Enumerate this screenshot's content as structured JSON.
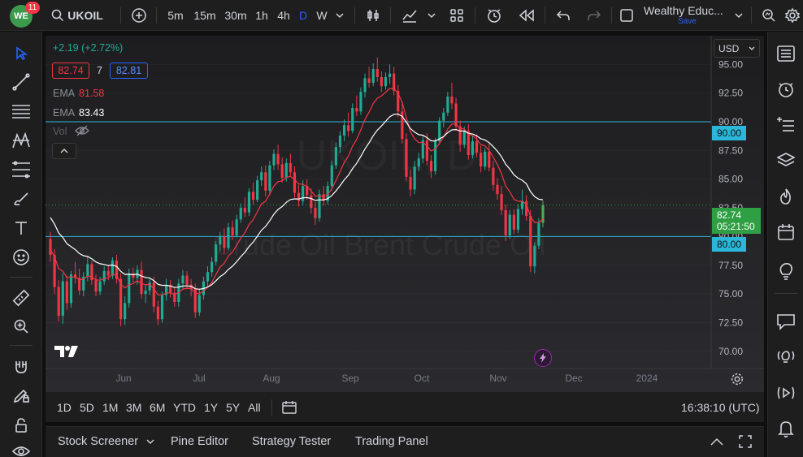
{
  "header": {
    "notification_count": "11",
    "avatar_initials": "WE",
    "symbol": "UKOIL",
    "intervals": [
      "5m",
      "15m",
      "30m",
      "1h",
      "4h",
      "D",
      "W"
    ],
    "active_interval": "D",
    "layout_name": "Wealthy Educ...",
    "save_label": "Save"
  },
  "legend": {
    "change": "+2.19 (+2.72%)",
    "bid": "82.74",
    "spread": "7",
    "ask": "82.81",
    "indicators": [
      {
        "name": "EMA",
        "value": "81.58",
        "color": "#f23645"
      },
      {
        "name": "EMA",
        "value": "83.43",
        "color": "#ffffff"
      }
    ],
    "volume_label": "Vol"
  },
  "watermark": {
    "symbol": "UKOIL, D",
    "name": "Crude Oil Brent Crude Oil"
  },
  "price_axis": {
    "currency": "USD",
    "ticks": [
      "95.00",
      "92.50",
      "90.00",
      "87.50",
      "85.00",
      "82.50",
      "80.00",
      "77.50",
      "75.00",
      "72.50",
      "70.00"
    ],
    "last_price": "82.74",
    "countdown": "05:21:50",
    "hline_upper": "90.00",
    "hline_lower": "80.00"
  },
  "time_axis": {
    "labels": [
      "Jun",
      "Jul",
      "Aug",
      "Sep",
      "Oct",
      "Nov",
      "Dec",
      "2024"
    ]
  },
  "bottom_bar": {
    "ranges": [
      "1D",
      "5D",
      "1M",
      "3M",
      "6M",
      "YTD",
      "1Y",
      "5Y",
      "All"
    ],
    "clock": "16:38:10 (UTC)"
  },
  "panels": [
    "Stock Screener",
    "Pine Editor",
    "Strategy Tester",
    "Trading Panel"
  ],
  "colors": {
    "up": "#22ab94",
    "up_bright": "#4caf50",
    "down": "#f23645",
    "hline": "#2bb7da",
    "accent": "#2962ff",
    "last_price_bg": "#2ea043"
  },
  "chart_data": {
    "type": "candlestick",
    "symbol": "UKOIL",
    "interval": "D",
    "ylim": [
      68.5,
      97.5
    ],
    "yticks": [
      95,
      92.5,
      90,
      87.5,
      85,
      82.5,
      80,
      77.5,
      75,
      72.5,
      70
    ],
    "horizontal_lines": [
      90.0,
      80.0
    ],
    "last_price": 82.74,
    "x_labels": [
      "Jun",
      "Jul",
      "Aug",
      "Sep",
      "Oct",
      "Nov",
      "Dec",
      "2024"
    ],
    "ohlc": [
      [
        79.8,
        80.4,
        77.8,
        78.4
      ],
      [
        78.4,
        78.9,
        75.0,
        75.6
      ],
      [
        75.6,
        76.2,
        72.6,
        73.1
      ],
      [
        73.1,
        76.8,
        72.4,
        76.1
      ],
      [
        76.1,
        76.6,
        73.6,
        74.2
      ],
      [
        74.2,
        77.0,
        73.8,
        76.7
      ],
      [
        76.7,
        77.8,
        75.9,
        76.4
      ],
      [
        76.4,
        77.2,
        74.9,
        75.3
      ],
      [
        75.3,
        76.9,
        74.8,
        76.5
      ],
      [
        76.5,
        78.3,
        76.1,
        77.6
      ],
      [
        77.6,
        77.9,
        75.8,
        76.2
      ],
      [
        76.2,
        76.7,
        74.8,
        75.2
      ],
      [
        75.2,
        76.5,
        74.9,
        76.1
      ],
      [
        76.1,
        77.4,
        75.8,
        77.0
      ],
      [
        77.0,
        77.5,
        76.2,
        76.6
      ],
      [
        76.6,
        78.2,
        76.3,
        77.9
      ],
      [
        77.9,
        78.4,
        75.9,
        76.3
      ],
      [
        76.3,
        76.8,
        72.2,
        72.8
      ],
      [
        72.8,
        74.8,
        72.3,
        74.2
      ],
      [
        74.2,
        77.2,
        73.8,
        76.8
      ],
      [
        76.8,
        77.3,
        76.0,
        76.4
      ],
      [
        76.4,
        77.5,
        75.8,
        77.1
      ],
      [
        77.1,
        77.8,
        74.6,
        75.0
      ],
      [
        75.0,
        75.8,
        74.2,
        75.3
      ],
      [
        75.3,
        76.4,
        74.9,
        76.0
      ],
      [
        76.0,
        76.5,
        73.4,
        73.9
      ],
      [
        73.9,
        74.4,
        72.3,
        72.8
      ],
      [
        72.8,
        75.2,
        72.5,
        74.9
      ],
      [
        74.9,
        76.3,
        74.4,
        75.8
      ],
      [
        75.8,
        76.2,
        74.7,
        75.1
      ],
      [
        75.1,
        75.6,
        73.9,
        74.3
      ],
      [
        74.3,
        76.3,
        73.9,
        75.9
      ],
      [
        75.9,
        77.1,
        75.4,
        76.6
      ],
      [
        76.6,
        77.0,
        75.4,
        75.8
      ],
      [
        75.8,
        76.3,
        74.8,
        75.4
      ],
      [
        75.4,
        75.9,
        72.9,
        73.4
      ],
      [
        73.4,
        75.4,
        73.1,
        74.9
      ],
      [
        74.9,
        76.5,
        74.5,
        76.1
      ],
      [
        76.1,
        77.4,
        75.7,
        76.9
      ],
      [
        76.9,
        78.2,
        76.5,
        77.8
      ],
      [
        77.8,
        79.6,
        77.5,
        79.3
      ],
      [
        79.3,
        80.4,
        78.7,
        80.0
      ],
      [
        80.0,
        80.7,
        78.5,
        79.0
      ],
      [
        79.0,
        81.2,
        78.8,
        80.8
      ],
      [
        80.8,
        81.4,
        79.7,
        80.1
      ],
      [
        80.1,
        81.9,
        79.9,
        81.5
      ],
      [
        81.5,
        82.9,
        81.2,
        82.5
      ],
      [
        82.5,
        83.4,
        81.7,
        82.1
      ],
      [
        82.1,
        84.2,
        81.8,
        83.9
      ],
      [
        83.9,
        84.7,
        82.8,
        83.2
      ],
      [
        83.2,
        85.3,
        83.0,
        84.9
      ],
      [
        84.9,
        86.1,
        84.4,
        85.6
      ],
      [
        85.6,
        86.2,
        83.5,
        84.0
      ],
      [
        84.0,
        86.6,
        83.6,
        86.2
      ],
      [
        86.2,
        87.6,
        85.8,
        87.2
      ],
      [
        87.2,
        88.0,
        85.8,
        86.3
      ],
      [
        86.3,
        86.9,
        84.7,
        85.1
      ],
      [
        85.1,
        86.8,
        84.8,
        86.4
      ],
      [
        86.4,
        87.2,
        85.2,
        85.6
      ],
      [
        85.6,
        86.1,
        83.4,
        83.8
      ],
      [
        83.8,
        84.5,
        82.6,
        83.1
      ],
      [
        83.1,
        84.9,
        82.7,
        84.4
      ],
      [
        84.4,
        85.0,
        83.2,
        83.6
      ],
      [
        83.6,
        84.2,
        82.0,
        82.5
      ],
      [
        82.5,
        83.0,
        81.0,
        81.6
      ],
      [
        81.6,
        84.1,
        81.3,
        83.7
      ],
      [
        83.7,
        84.4,
        82.7,
        83.1
      ],
      [
        83.1,
        84.8,
        82.8,
        84.4
      ],
      [
        84.4,
        86.6,
        84.0,
        86.2
      ],
      [
        86.2,
        88.2,
        85.9,
        87.8
      ],
      [
        87.8,
        89.2,
        87.3,
        88.8
      ],
      [
        88.8,
        90.2,
        88.3,
        89.7
      ],
      [
        89.7,
        90.8,
        88.7,
        89.2
      ],
      [
        89.2,
        91.6,
        89.0,
        91.2
      ],
      [
        91.2,
        92.3,
        90.5,
        90.9
      ],
      [
        90.9,
        93.0,
        90.6,
        92.6
      ],
      [
        92.6,
        94.2,
        92.1,
        93.8
      ],
      [
        93.8,
        94.8,
        93.0,
        93.4
      ],
      [
        93.4,
        95.1,
        93.1,
        94.6
      ],
      [
        94.6,
        95.6,
        93.5,
        93.9
      ],
      [
        93.9,
        94.4,
        92.6,
        93.1
      ],
      [
        93.1,
        94.3,
        92.8,
        93.9
      ],
      [
        93.9,
        95.0,
        93.3,
        94.2
      ],
      [
        94.2,
        94.8,
        92.3,
        92.7
      ],
      [
        92.7,
        93.2,
        90.4,
        90.9
      ],
      [
        90.9,
        91.8,
        88.1,
        88.5
      ],
      [
        88.5,
        89.0,
        84.8,
        85.2
      ],
      [
        85.2,
        85.8,
        83.5,
        84.1
      ],
      [
        84.1,
        86.6,
        83.7,
        86.1
      ],
      [
        86.1,
        87.3,
        85.7,
        86.8
      ],
      [
        86.8,
        88.8,
        86.4,
        88.4
      ],
      [
        88.4,
        89.0,
        86.2,
        86.6
      ],
      [
        86.6,
        87.1,
        85.1,
        85.7
      ],
      [
        85.7,
        88.6,
        85.4,
        88.3
      ],
      [
        88.3,
        90.4,
        88.0,
        90.1
      ],
      [
        90.1,
        91.2,
        89.5,
        90.8
      ],
      [
        90.8,
        92.6,
        90.5,
        92.2
      ],
      [
        92.2,
        93.4,
        91.1,
        91.6
      ],
      [
        91.6,
        92.1,
        89.2,
        89.6
      ],
      [
        89.6,
        90.1,
        87.4,
        88.0
      ],
      [
        88.0,
        89.6,
        87.7,
        89.2
      ],
      [
        89.2,
        89.8,
        86.7,
        87.1
      ],
      [
        87.1,
        88.8,
        86.8,
        88.3
      ],
      [
        88.3,
        88.9,
        86.9,
        87.3
      ],
      [
        87.3,
        87.9,
        85.6,
        86.1
      ],
      [
        86.1,
        87.7,
        85.8,
        87.4
      ],
      [
        87.4,
        88.1,
        85.7,
        86.0
      ],
      [
        86.0,
        86.6,
        84.0,
        84.5
      ],
      [
        84.5,
        85.1,
        83.2,
        83.7
      ],
      [
        83.7,
        84.4,
        81.9,
        82.3
      ],
      [
        82.3,
        82.8,
        79.6,
        80.1
      ],
      [
        80.1,
        82.3,
        79.8,
        81.9
      ],
      [
        81.9,
        82.4,
        80.2,
        80.6
      ],
      [
        80.6,
        82.8,
        80.3,
        82.4
      ],
      [
        82.4,
        84.1,
        81.9,
        83.1
      ],
      [
        83.1,
        83.6,
        81.4,
        81.8
      ],
      [
        81.8,
        82.3,
        76.9,
        77.4
      ],
      [
        77.4,
        79.5,
        76.8,
        79.2
      ],
      [
        79.2,
        81.6,
        78.9,
        81.2
      ],
      [
        81.2,
        83.1,
        80.8,
        82.74
      ]
    ],
    "ema_fast_last": 81.58,
    "ema_slow_last": 83.43
  }
}
